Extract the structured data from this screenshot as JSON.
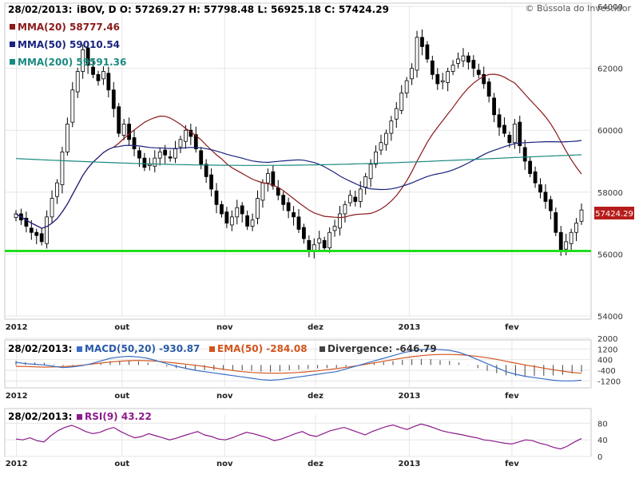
{
  "watermark": "© Bússola do Investidor",
  "chart_data": [
    {
      "type": "candlestick",
      "panel": "price",
      "header": {
        "date": "28/02/2013:",
        "symbol_line": "iBOV, D O: 57269.27  H: 57798.48  L: 56925.18  C: 57424.29",
        "ohlc": {
          "open": 57269.27,
          "high": 57798.48,
          "low": 56925.18,
          "close": 57424.29
        }
      },
      "last_price_label": "57424.29",
      "ylim": [
        54000,
        64000
      ],
      "y_ticks": [
        "64000",
        "62000",
        "60000",
        "58000",
        "56000",
        "54000"
      ],
      "x_ticks": [
        "2012",
        "out",
        "nov",
        "dez",
        "2013",
        "fev"
      ],
      "x_tick_positions": [
        0.02,
        0.2,
        0.375,
        0.53,
        0.69,
        0.865
      ],
      "legend": [
        {
          "label": "MMA(20) 58777.46",
          "color": "#8b1a1a"
        },
        {
          "label": "MMA(50) 59010.54",
          "color": "#1a237e"
        },
        {
          "label": "MMA(200) 59591.36",
          "color": "#1a8a80"
        }
      ],
      "support_level": 56100,
      "support_color": "#22dd22",
      "candle_up_color": "#ffffff",
      "candle_down_color": "#000000",
      "closes": [
        57300,
        57100,
        56900,
        56700,
        56600,
        56400,
        57200,
        57800,
        58300,
        59300,
        60200,
        61300,
        61900,
        62600,
        62100,
        61800,
        61600,
        61900,
        61300,
        60700,
        59900,
        60200,
        59700,
        59400,
        59100,
        58800,
        58900,
        59100,
        59300,
        59200,
        59100,
        59400,
        59700,
        60000,
        59800,
        59400,
        58900,
        58500,
        58100,
        57600,
        57300,
        57000,
        57200,
        57500,
        57300,
        56900,
        57100,
        57800,
        58300,
        58600,
        58200,
        57900,
        57600,
        57400,
        57200,
        56800,
        56500,
        56100,
        56300,
        56500,
        56200,
        56700,
        56900,
        57300,
        57600,
        57900,
        57700,
        58100,
        58500,
        58900,
        59300,
        59600,
        59900,
        60300,
        60700,
        61200,
        61600,
        62000,
        63000,
        62700,
        62300,
        61800,
        61500,
        61600,
        61900,
        62100,
        62300,
        62400,
        62200,
        62000,
        61800,
        61500,
        61100,
        60500,
        60100,
        59900,
        59600,
        60200,
        59500,
        59000,
        58600,
        58300,
        58000,
        57700,
        57400,
        56700,
        56100,
        56400,
        56700,
        57000,
        57424
      ]
    },
    {
      "type": "line",
      "panel": "macd",
      "header": {
        "date": "28/02/2013:",
        "macd": "MACD(50,20) -930.87",
        "ema": "EMA(50) -284.08",
        "divergence": "Divergence: -646.79"
      },
      "colors": {
        "macd": "#3a6ec4",
        "ema": "#d2541c",
        "divergence": "#444444"
      },
      "ylim": [
        -1600,
        2000
      ],
      "y_ticks": [
        {
          "v": 2000,
          "t": "2000"
        },
        {
          "v": 1200,
          "t": "1200"
        },
        {
          "v": 400,
          "t": "400"
        },
        {
          "v": -400,
          "t": "-400"
        },
        {
          "v": -1200,
          "t": "-1200"
        }
      ],
      "x_ticks": [
        "2012",
        "out",
        "nov",
        "dez",
        "2013",
        "fev"
      ],
      "macd_values": [
        200,
        100,
        50,
        0,
        -100,
        -200,
        -150,
        -50,
        100,
        300,
        500,
        600,
        650,
        600,
        500,
        300,
        100,
        -100,
        -250,
        -400,
        -500,
        -600,
        -700,
        -800,
        -900,
        -1000,
        -1100,
        -1150,
        -1100,
        -1000,
        -900,
        -800,
        -700,
        -600,
        -500,
        -300,
        -100,
        100,
        300,
        500,
        700,
        900,
        1050,
        1150,
        1200,
        1150,
        1100,
        950,
        700,
        400,
        100,
        -200,
        -500,
        -700,
        -850,
        -950,
        -1050,
        -1150,
        -1200,
        -1200,
        -1150
      ],
      "ema_values": [
        -100,
        -120,
        -140,
        -160,
        -150,
        -120,
        -80,
        -20,
        60,
        140,
        220,
        280,
        320,
        340,
        320,
        280,
        220,
        140,
        60,
        -20,
        -120,
        -220,
        -320,
        -420,
        -500,
        -560,
        -600,
        -620,
        -620,
        -600,
        -560,
        -500,
        -440,
        -360,
        -280,
        -180,
        -80,
        40,
        160,
        280,
        400,
        520,
        620,
        700,
        760,
        790,
        790,
        770,
        720,
        640,
        540,
        420,
        280,
        140,
        0,
        -120,
        -240,
        -360,
        -460,
        -560,
        -620
      ]
    },
    {
      "type": "line",
      "panel": "rsi",
      "header": {
        "date": "28/02/2013:",
        "rsi": "RSI(9) 43.22"
      },
      "color": "#8b1a8b",
      "ylim": [
        0,
        100
      ],
      "y_ticks": [
        {
          "v": 80,
          "t": "80"
        },
        {
          "v": 40,
          "t": "40"
        },
        {
          "v": 0,
          "t": "0"
        }
      ],
      "x_ticks": [
        "2012",
        "out",
        "nov",
        "dez",
        "2013",
        "fev"
      ],
      "values": [
        42,
        40,
        45,
        38,
        35,
        50,
        62,
        70,
        75,
        68,
        60,
        55,
        58,
        65,
        70,
        60,
        52,
        45,
        48,
        55,
        50,
        45,
        40,
        44,
        50,
        55,
        60,
        52,
        48,
        42,
        40,
        45,
        52,
        58,
        55,
        50,
        45,
        38,
        42,
        48,
        55,
        60,
        52,
        48,
        55,
        62,
        66,
        70,
        64,
        58,
        52,
        60,
        66,
        72,
        76,
        70,
        65,
        72,
        78,
        74,
        68,
        62,
        58,
        55,
        52,
        48,
        45,
        40,
        38,
        35,
        32,
        30,
        35,
        40,
        38,
        32,
        28,
        22,
        18,
        25,
        35,
        43
      ]
    }
  ]
}
